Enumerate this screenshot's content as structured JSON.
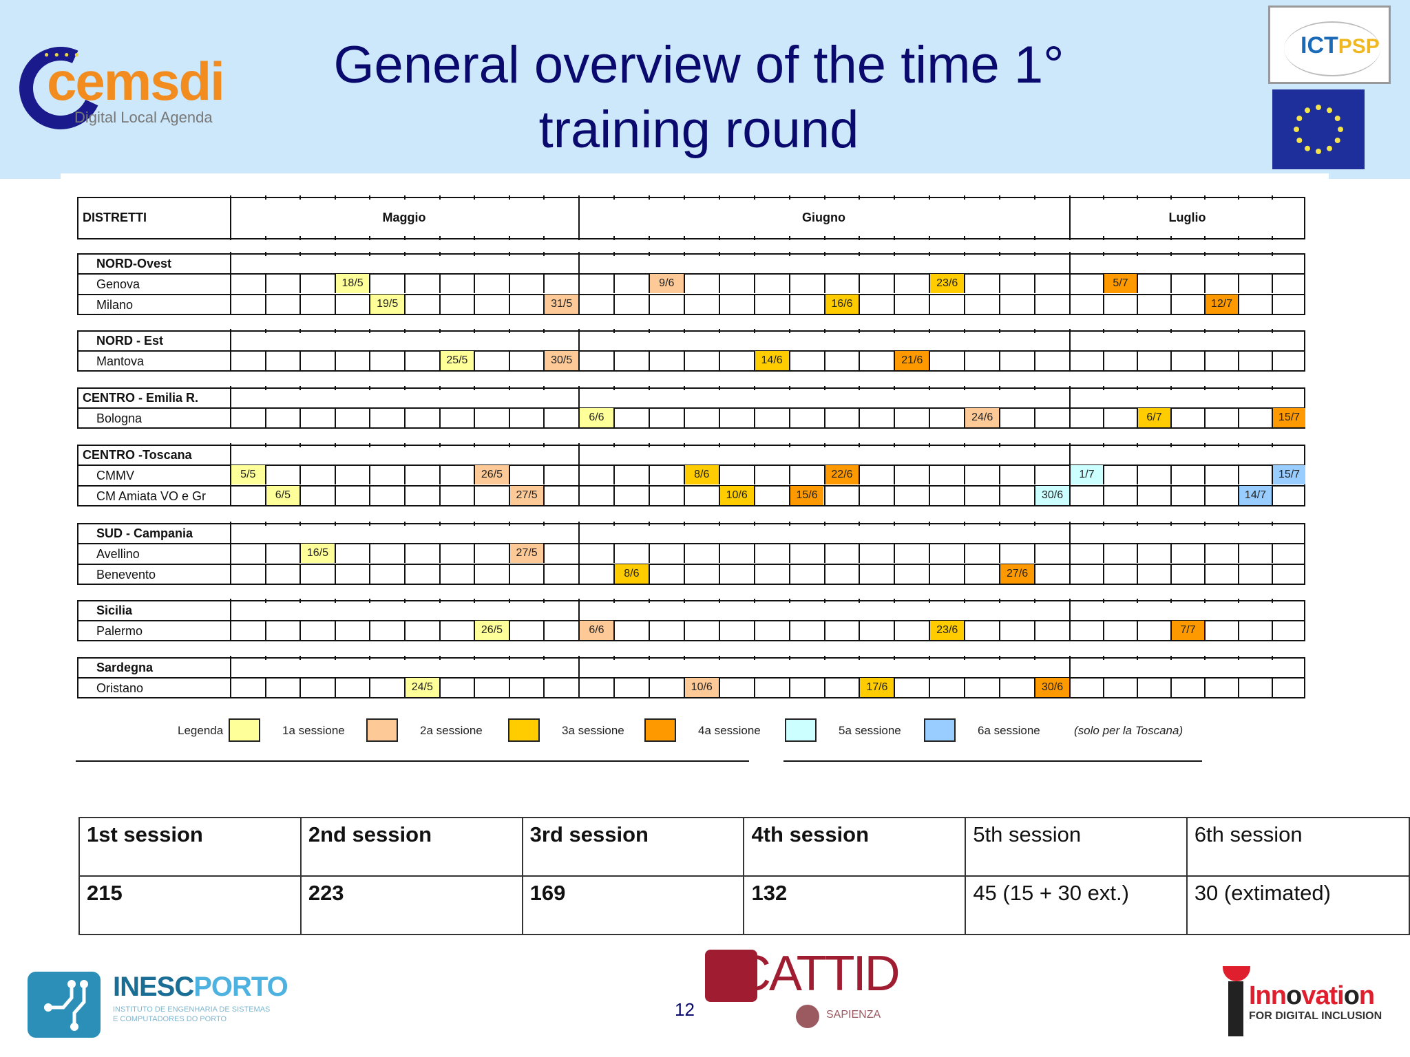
{
  "slide": {
    "title_line1": "General overview of the time 1°",
    "title_line2": "training round",
    "page_number": "12"
  },
  "logos": {
    "cemsdi": {
      "name": "cemsdi",
      "tagline": "Digital Local Agenda"
    },
    "ictpsp": {
      "ict": "ICT",
      "psp": "PSP"
    },
    "eu_flag": "eu-flag",
    "inescporto": {
      "name_a": "INESC",
      "name_b": "PORTO",
      "sub1": "INSTITUTO DE ENGENHARIA DE SISTEMAS",
      "sub2": "E COMPUTADORES DO PORTO"
    },
    "cattid": {
      "name": "CATTID",
      "sub": "SAPIENZA"
    },
    "innovation": {
      "line1a": "Inn",
      "line1b": "o",
      "line1c": "vati",
      "line1d": "o",
      "line1e": "n",
      "line2": "FOR DIGITAL INCLUSION"
    }
  },
  "schedule": {
    "header": {
      "districts_label": "DISTRETTI",
      "months": [
        "Maggio",
        "Giugno",
        "Luglio"
      ]
    },
    "month_columns": [
      10,
      14,
      7
    ],
    "session_colors": {
      "1": "#ffff99",
      "2": "#fcc997",
      "3": "#ffcc00",
      "4": "#ff9900",
      "5": "#ccffff",
      "6": "#99ccff"
    },
    "groups": [
      {
        "name": "NORD-Ovest",
        "indent": true,
        "rows": [
          {
            "name": "Genova",
            "cells": [
              {
                "col": 3,
                "label": "18/5",
                "s": 1
              },
              {
                "col": 12,
                "label": "9/6",
                "s": 2
              },
              {
                "col": 20,
                "label": "23/6",
                "s": 3
              },
              {
                "col": 25,
                "label": "5/7",
                "s": 4
              }
            ]
          },
          {
            "name": "Milano",
            "cells": [
              {
                "col": 4,
                "label": "19/5",
                "s": 1
              },
              {
                "col": 9,
                "label": "31/5",
                "s": 2
              },
              {
                "col": 17,
                "label": "16/6",
                "s": 3
              },
              {
                "col": 28,
                "label": "12/7",
                "s": 4
              }
            ]
          }
        ]
      },
      {
        "name": "NORD - Est",
        "indent": true,
        "rows": [
          {
            "name": "Mantova",
            "cells": [
              {
                "col": 6,
                "label": "25/5",
                "s": 1
              },
              {
                "col": 9,
                "label": "30/5",
                "s": 2
              },
              {
                "col": 15,
                "label": "14/6",
                "s": 3
              },
              {
                "col": 19,
                "label": "21/6",
                "s": 4
              }
            ]
          }
        ]
      },
      {
        "name": "CENTRO - Emilia R.",
        "indent": false,
        "rows": [
          {
            "name": "Bologna",
            "cells": [
              {
                "col": 10,
                "label": "6/6",
                "s": 1
              },
              {
                "col": 21,
                "label": "24/6",
                "s": 2
              },
              {
                "col": 26,
                "label": "6/7",
                "s": 3
              },
              {
                "col": 30,
                "label": "15/7",
                "s": 4
              }
            ]
          }
        ]
      },
      {
        "name": "CENTRO -Toscana",
        "indent": false,
        "rows": [
          {
            "name": "CMMV",
            "cells": [
              {
                "col": 0,
                "label": "5/5",
                "s": 1
              },
              {
                "col": 7,
                "label": "26/5",
                "s": 2
              },
              {
                "col": 13,
                "label": "8/6",
                "s": 3
              },
              {
                "col": 17,
                "label": "22/6",
                "s": 4
              },
              {
                "col": 24,
                "label": "1/7",
                "s": 5
              },
              {
                "col": 30,
                "label": "15/7",
                "s": 6
              }
            ]
          },
          {
            "name": "CM Amiata VO e Gr",
            "cells": [
              {
                "col": 1,
                "label": "6/5",
                "s": 1
              },
              {
                "col": 8,
                "label": "27/5",
                "s": 2
              },
              {
                "col": 14,
                "label": "10/6",
                "s": 3
              },
              {
                "col": 16,
                "label": "15/6",
                "s": 4
              },
              {
                "col": 23,
                "label": "30/6",
                "s": 5
              },
              {
                "col": 29,
                "label": "14/7",
                "s": 6
              }
            ]
          }
        ]
      },
      {
        "name": "SUD - Campania",
        "indent": true,
        "rows": [
          {
            "name": "Avellino",
            "cells": [
              {
                "col": 2,
                "label": "16/5",
                "s": 1
              },
              {
                "col": 8,
                "label": "27/5",
                "s": 2
              }
            ]
          },
          {
            "name": "Benevento",
            "cells": [
              {
                "col": 11,
                "label": "8/6",
                "s": 3
              },
              {
                "col": 22,
                "label": "27/6",
                "s": 4
              }
            ]
          }
        ]
      },
      {
        "name": "Sicilia",
        "indent": true,
        "rows": [
          {
            "name": "Palermo",
            "cells": [
              {
                "col": 7,
                "label": "26/5",
                "s": 1
              },
              {
                "col": 10,
                "label": "6/6",
                "s": 2
              },
              {
                "col": 20,
                "label": "23/6",
                "s": 3
              },
              {
                "col": 27,
                "label": "7/7",
                "s": 4
              }
            ]
          }
        ]
      },
      {
        "name": "Sardegna",
        "indent": true,
        "rows": [
          {
            "name": "Oristano",
            "cells": [
              {
                "col": 5,
                "label": "24/5",
                "s": 1
              },
              {
                "col": 13,
                "label": "10/6",
                "s": 2
              },
              {
                "col": 18,
                "label": "17/6",
                "s": 3
              },
              {
                "col": 23,
                "label": "30/6",
                "s": 4
              }
            ]
          }
        ]
      }
    ],
    "legend": {
      "title": "Legenda",
      "items": [
        {
          "label": "1a sessione",
          "s": 1
        },
        {
          "label": "2a sessione",
          "s": 2
        },
        {
          "label": "3a sessione",
          "s": 3
        },
        {
          "label": "4a sessione",
          "s": 4
        },
        {
          "label": "5a sessione",
          "s": 5
        },
        {
          "label": "6a sessione",
          "s": 6
        }
      ],
      "note": "(solo per la Toscana)"
    }
  },
  "totals": {
    "headers": [
      "1st session",
      "2nd session",
      "3rd session",
      "4th session",
      "5th session",
      "6th session"
    ],
    "values": [
      "215",
      "223",
      "169",
      "132",
      "45 (15 + 30 ext.)",
      "30 (extimated)"
    ],
    "bold": [
      true,
      true,
      true,
      true,
      false,
      false
    ]
  }
}
